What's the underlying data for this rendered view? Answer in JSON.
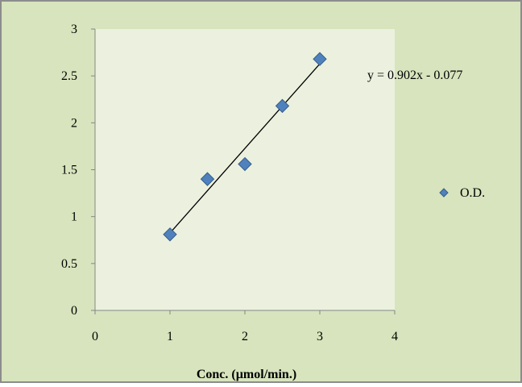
{
  "colors": {
    "chart_background": "#d7e4bd",
    "plot_background": "#ebf1de",
    "border": "#8c8c8c",
    "marker": "#4f81bd",
    "marker_edge": "#385d8a",
    "trendline": "#000000"
  },
  "chart_data": {
    "type": "scatter",
    "title": "",
    "xlabel": "Conc. (µmol/min.)",
    "ylabel": "",
    "xlim": [
      0,
      4
    ],
    "ylim": [
      0,
      3
    ],
    "x_ticks": [
      "0",
      "1",
      "2",
      "3",
      "4"
    ],
    "y_ticks": [
      "0",
      "0.5",
      "1",
      "1.5",
      "2",
      "2.5",
      "3"
    ],
    "grid": false,
    "legend_position": "right",
    "series": [
      {
        "name": "O.D.",
        "marker": "diamond",
        "points": [
          {
            "x": 1,
            "y": 0.81
          },
          {
            "x": 1.5,
            "y": 1.4
          },
          {
            "x": 2,
            "y": 1.56
          },
          {
            "x": 2.5,
            "y": 2.18
          },
          {
            "x": 3,
            "y": 2.68
          }
        ]
      }
    ],
    "trendline": {
      "type": "linear",
      "slope": 0.902,
      "intercept": -0.077,
      "x_range": [
        1,
        3
      ],
      "equation_label": "y = 0.902x - 0.077"
    }
  }
}
